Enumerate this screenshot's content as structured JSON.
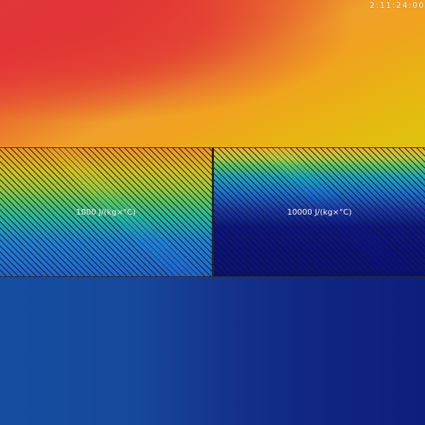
{
  "timer": {
    "text": "2:11:24:00"
  },
  "materials": [
    {
      "label": "1000 J/(kg×°C)"
    },
    {
      "label": "10000 J/(kg×°C)"
    }
  ]
}
